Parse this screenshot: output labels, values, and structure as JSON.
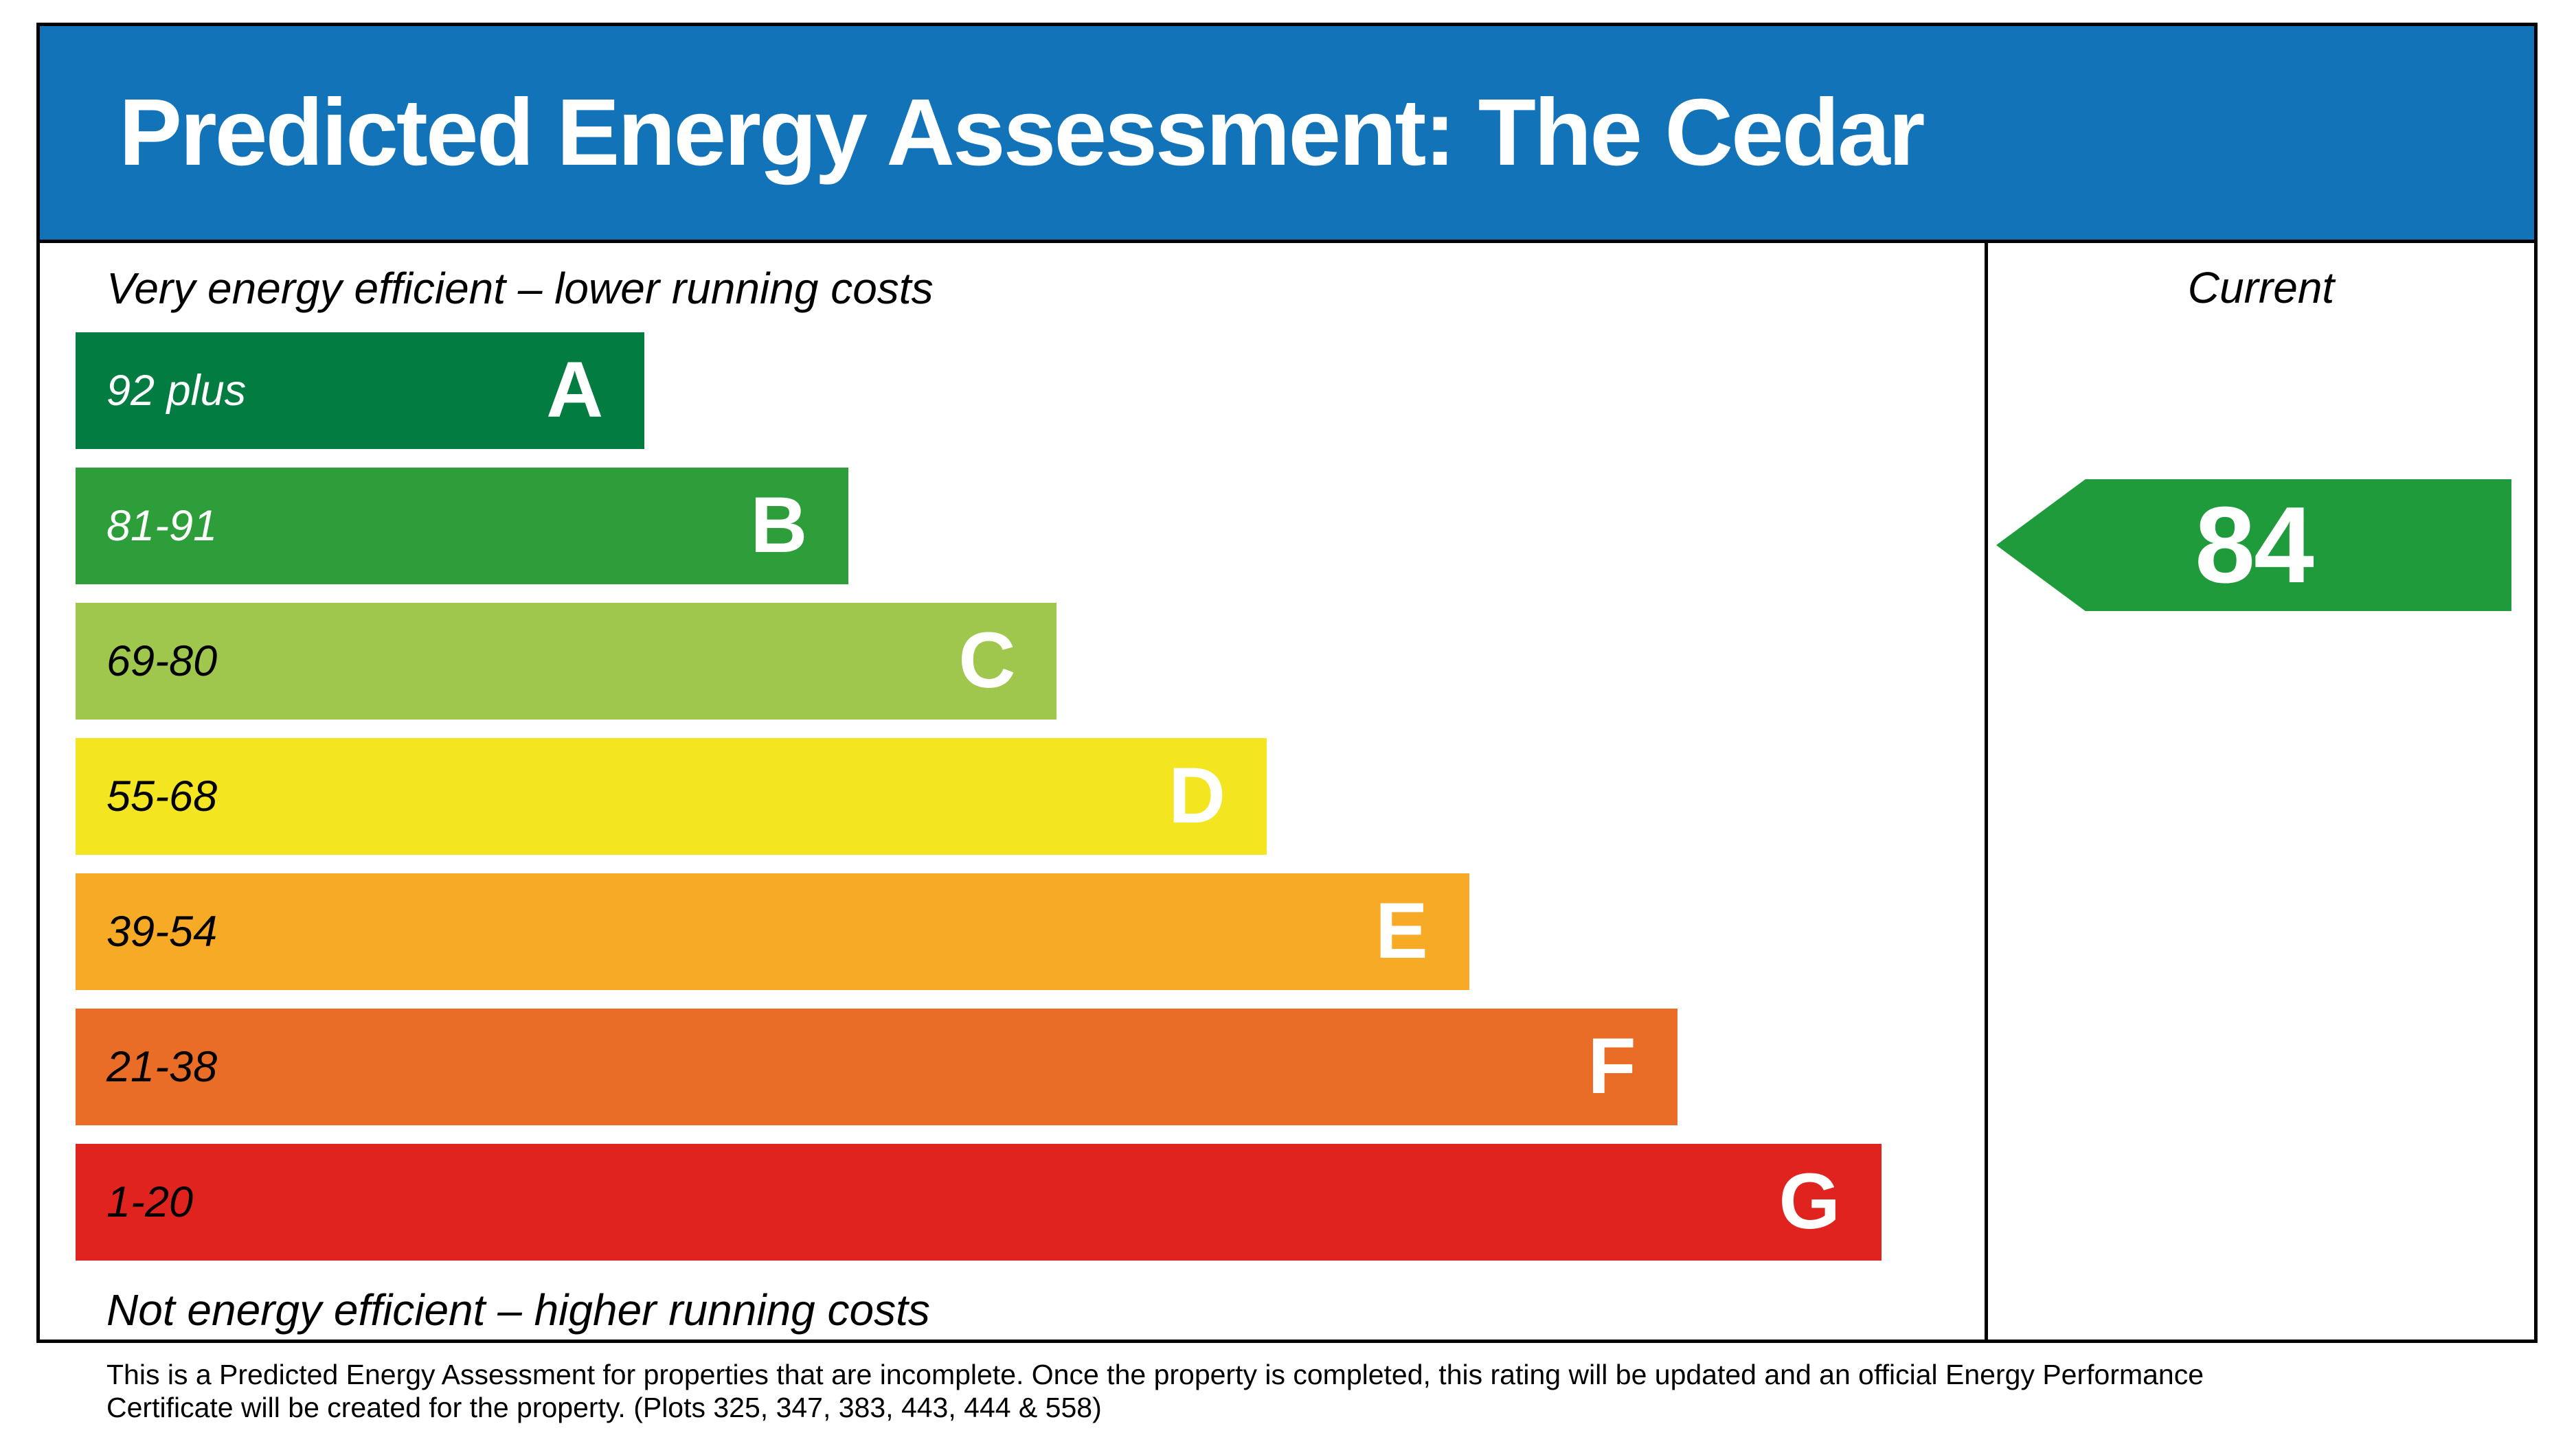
{
  "header": {
    "title": "Predicted Energy Assessment: The Cedar",
    "bg_color": "#1273b8"
  },
  "chart": {
    "top_label": "Very energy efficient – lower running costs",
    "bottom_label": "Not energy efficient – higher running costs",
    "bands": [
      {
        "range": "92 plus",
        "letter": "A",
        "color": "#037c41",
        "text_color": "#ffffff",
        "width_pct": 29.8
      },
      {
        "range": "81-91",
        "letter": "B",
        "color": "#2d9e39",
        "text_color": "#ffffff",
        "width_pct": 40.5
      },
      {
        "range": "69-80",
        "letter": "C",
        "color": "#9fc64d",
        "text_color": "#000000",
        "width_pct": 51.4
      },
      {
        "range": "55-68",
        "letter": "D",
        "color": "#f4e521",
        "text_color": "#000000",
        "width_pct": 62.4
      },
      {
        "range": "39-54",
        "letter": "E",
        "color": "#f7aa25",
        "text_color": "#000000",
        "width_pct": 73.0
      },
      {
        "range": "21-38",
        "letter": "F",
        "color": "#e96d27",
        "text_color": "#000000",
        "width_pct": 83.9
      },
      {
        "range": "1-20",
        "letter": "G",
        "color": "#e0231f",
        "text_color": "#000000",
        "width_pct": 94.6
      }
    ],
    "current": {
      "label": "Current",
      "value": "84",
      "band": "B",
      "arrow_color": "#1f9b3b"
    }
  },
  "footer": {
    "line1": "This is a Predicted Energy Assessment for properties that are incomplete. Once the property is completed, this rating will be updated and an official Energy Performance",
    "line2": "Certificate will be created for the property. (Plots 325, 347, 383, 443, 444 & 558)"
  },
  "chart_data": {
    "type": "bar",
    "title": "Predicted Energy Assessment: The Cedar",
    "categories": [
      "A",
      "B",
      "C",
      "D",
      "E",
      "F",
      "G"
    ],
    "band_ranges": [
      "92 plus",
      "81-91",
      "69-80",
      "55-68",
      "39-54",
      "21-38",
      "1-20"
    ],
    "bar_lengths_pct_of_column": [
      29.8,
      40.5,
      51.4,
      62.4,
      73.0,
      83.9,
      94.6
    ],
    "bar_colors": [
      "#037c41",
      "#2d9e39",
      "#9fc64d",
      "#f4e521",
      "#f7aa25",
      "#e96d27",
      "#e0231f"
    ],
    "top_annotation": "Very energy efficient – lower running costs",
    "bottom_annotation": "Not energy efficient – higher running costs",
    "current_rating": 84,
    "current_band": "B",
    "legend_position": "right-column",
    "grid": false
  }
}
